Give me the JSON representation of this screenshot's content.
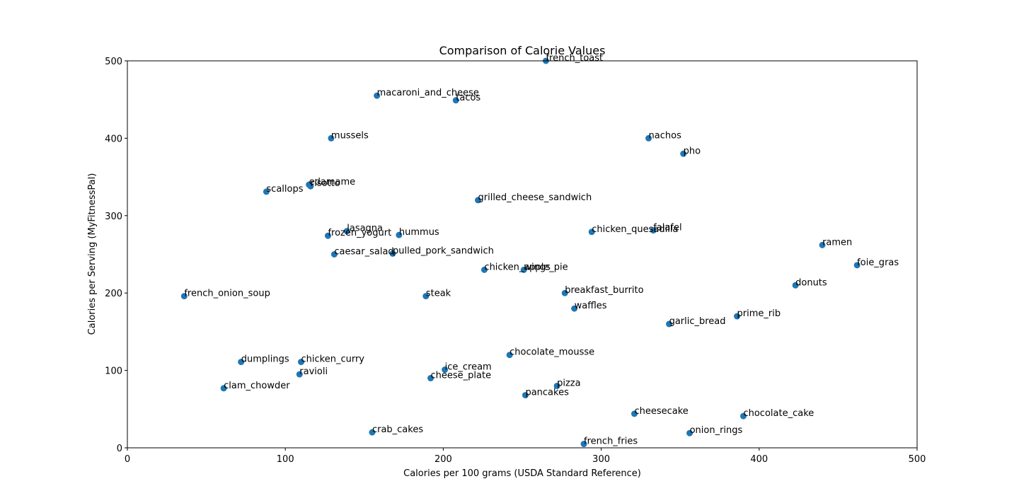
{
  "chart_data": {
    "type": "scatter",
    "title": "Comparison of Calorie Values",
    "xlabel": "Calories per 100 grams (USDA Standard Reference)",
    "ylabel": "Calories per Serving (MyFitnessPal)",
    "xlim": [
      0,
      500
    ],
    "ylim": [
      0,
      500
    ],
    "xticks": [
      0,
      100,
      200,
      300,
      400,
      500
    ],
    "yticks": [
      0,
      100,
      200,
      300,
      400,
      500
    ],
    "grid": false,
    "marker_color": "#1f77b4",
    "points": [
      {
        "label": "french_toast",
        "x": 265,
        "y": 500
      },
      {
        "label": "macaroni_and_cheese",
        "x": 158,
        "y": 455
      },
      {
        "label": "tacos",
        "x": 208,
        "y": 449
      },
      {
        "label": "mussels",
        "x": 129,
        "y": 400
      },
      {
        "label": "nachos",
        "x": 330,
        "y": 400
      },
      {
        "label": "pho",
        "x": 352,
        "y": 380
      },
      {
        "label": "edamame",
        "x": 115,
        "y": 340
      },
      {
        "label": "risotto",
        "x": 116,
        "y": 338
      },
      {
        "label": "scallops",
        "x": 88,
        "y": 331
      },
      {
        "label": "grilled_cheese_sandwich",
        "x": 222,
        "y": 320
      },
      {
        "label": "lasagna",
        "x": 139,
        "y": 280
      },
      {
        "label": "frozen_yogurt",
        "x": 127,
        "y": 274
      },
      {
        "label": "hummus",
        "x": 172,
        "y": 275
      },
      {
        "label": "chicken_quesadilla",
        "x": 294,
        "y": 279
      },
      {
        "label": "falafel",
        "x": 333,
        "y": 281
      },
      {
        "label": "ramen",
        "x": 440,
        "y": 262
      },
      {
        "label": "caesar_salad",
        "x": 131,
        "y": 250
      },
      {
        "label": "pulled_pork_sandwich",
        "x": 168,
        "y": 251
      },
      {
        "label": "chicken_wings",
        "x": 226,
        "y": 230
      },
      {
        "label": "apple_pie",
        "x": 251,
        "y": 230
      },
      {
        "label": "foie_gras",
        "x": 462,
        "y": 236
      },
      {
        "label": "donuts",
        "x": 423,
        "y": 210
      },
      {
        "label": "french_onion_soup",
        "x": 36,
        "y": 196
      },
      {
        "label": "steak",
        "x": 189,
        "y": 196
      },
      {
        "label": "breakfast_burrito",
        "x": 277,
        "y": 200
      },
      {
        "label": "waffles",
        "x": 283,
        "y": 180
      },
      {
        "label": "prime_rib",
        "x": 386,
        "y": 170
      },
      {
        "label": "garlic_bread",
        "x": 343,
        "y": 160
      },
      {
        "label": "chocolate_mousse",
        "x": 242,
        "y": 120
      },
      {
        "label": "dumplings",
        "x": 72,
        "y": 111
      },
      {
        "label": "chicken_curry",
        "x": 110,
        "y": 111
      },
      {
        "label": "ice_cream",
        "x": 201,
        "y": 101
      },
      {
        "label": "ravioli",
        "x": 109,
        "y": 95
      },
      {
        "label": "cheese_plate",
        "x": 192,
        "y": 90
      },
      {
        "label": "pizza",
        "x": 272,
        "y": 80
      },
      {
        "label": "clam_chowder",
        "x": 61,
        "y": 77
      },
      {
        "label": "pancakes",
        "x": 252,
        "y": 68
      },
      {
        "label": "cheesecake",
        "x": 321,
        "y": 44
      },
      {
        "label": "chocolate_cake",
        "x": 390,
        "y": 41
      },
      {
        "label": "crab_cakes",
        "x": 155,
        "y": 20
      },
      {
        "label": "onion_rings",
        "x": 356,
        "y": 19
      },
      {
        "label": "french_fries",
        "x": 289,
        "y": 5
      }
    ]
  }
}
